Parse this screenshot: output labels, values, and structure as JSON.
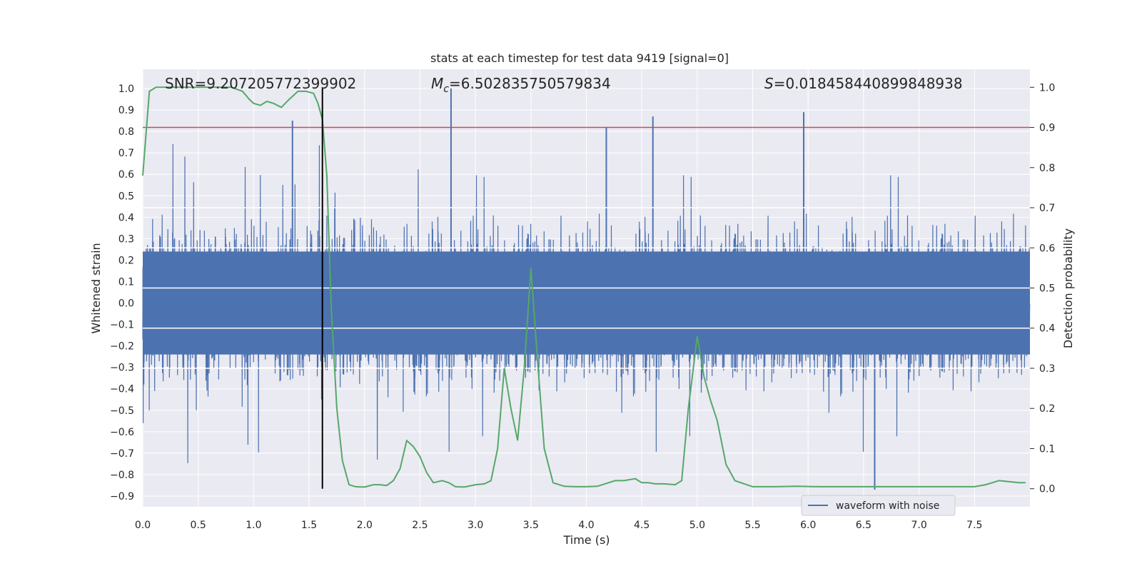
{
  "chart_data": {
    "type": "line",
    "title": "stats at each timestep for test data 9419 [signal=0]",
    "xlabel": "Time (s)",
    "ylabel": "Whitened strain",
    "y2label": "Detection probability",
    "xlim": [
      0,
      8
    ],
    "ylim": [
      -0.95,
      1.09
    ],
    "y2lim": [
      -0.045,
      1.045
    ],
    "xticks": [
      "0.0",
      "0.5",
      "1.0",
      "1.5",
      "2.0",
      "2.5",
      "3.0",
      "3.5",
      "4.0",
      "4.5",
      "5.0",
      "5.5",
      "6.0",
      "6.5",
      "7.0",
      "7.5"
    ],
    "xtick_values": [
      0,
      0.5,
      1,
      1.5,
      2,
      2.5,
      3,
      3.5,
      4,
      4.5,
      5,
      5.5,
      6,
      6.5,
      7,
      7.5
    ],
    "yticks": [
      "1.0",
      "0.9",
      "0.8",
      "0.7",
      "0.6",
      "0.5",
      "0.4",
      "0.3",
      "0.2",
      "0.1",
      "0.0",
      "−0.1",
      "−0.2",
      "−0.3",
      "−0.4",
      "−0.5",
      "−0.6",
      "−0.7",
      "−0.8",
      "−0.9"
    ],
    "ytick_values": [
      1.0,
      0.9,
      0.8,
      0.7,
      0.6,
      0.5,
      0.4,
      0.3,
      0.2,
      0.1,
      0.0,
      -0.1,
      -0.2,
      -0.3,
      -0.4,
      -0.5,
      -0.6,
      -0.7,
      -0.8,
      -0.9
    ],
    "y2ticks": [
      "1.0",
      "0.9",
      "0.8",
      "0.7",
      "0.6",
      "0.5",
      "0.4",
      "0.3",
      "0.2",
      "0.1",
      "0.0"
    ],
    "y2tick_values": [
      1.0,
      0.9,
      0.8,
      0.7,
      0.6,
      0.5,
      0.4,
      0.3,
      0.2,
      0.1,
      0.0
    ],
    "annotations": {
      "snr": "SNR=9.207205772399902",
      "mc_prefix": "M",
      "mc_sub": "c",
      "mc_value": "=6.502835750579834",
      "s_prefix": "S",
      "s_value": "=0.018458440899848938"
    },
    "threshold_y2": 0.9,
    "marker_x": 1.62,
    "legend": {
      "label": "waveform with noise",
      "placement": "lower-right"
    },
    "series": [
      {
        "name": "waveform with noise",
        "color": "#4c72b0",
        "note": "dense noise, about ±0.25 core with spikes to about ±0.6; peaks near 1.0 and -0.87",
        "peaks": [
          [
            2.78,
            1.0
          ],
          [
            6.6,
            -0.87
          ],
          [
            1.35,
            0.85
          ],
          [
            4.6,
            0.87
          ],
          [
            5.96,
            0.89
          ],
          [
            4.18,
            0.82
          ]
        ]
      },
      {
        "name": "",
        "color": "#55a868",
        "axis": "y2",
        "x": [
          0.0,
          0.06,
          0.12,
          0.2,
          0.3,
          0.4,
          0.5,
          0.6,
          0.7,
          0.8,
          0.9,
          0.96,
          1.0,
          1.06,
          1.12,
          1.18,
          1.25,
          1.32,
          1.4,
          1.47,
          1.54,
          1.58,
          1.62,
          1.66,
          1.7,
          1.75,
          1.8,
          1.86,
          1.92,
          2.0,
          2.08,
          2.14,
          2.2,
          2.26,
          2.32,
          2.38,
          2.44,
          2.5,
          2.56,
          2.62,
          2.7,
          2.76,
          2.82,
          2.9,
          3.0,
          3.08,
          3.14,
          3.2,
          3.26,
          3.32,
          3.38,
          3.44,
          3.5,
          3.56,
          3.62,
          3.7,
          3.8,
          3.9,
          4.0,
          4.1,
          4.2,
          4.26,
          4.34,
          4.44,
          4.5,
          4.56,
          4.62,
          4.7,
          4.8,
          4.86,
          4.92,
          5.0,
          5.06,
          5.12,
          5.18,
          5.26,
          5.34,
          5.5,
          5.7,
          5.9,
          6.1,
          6.3,
          6.5,
          6.7,
          6.9,
          7.1,
          7.3,
          7.5,
          7.6,
          7.66,
          7.72,
          7.8,
          7.9,
          7.96
        ],
        "values": [
          0.78,
          0.99,
          1.0,
          1.0,
          1.0,
          1.0,
          1.0,
          1.0,
          1.0,
          1.0,
          0.99,
          0.97,
          0.96,
          0.955,
          0.965,
          0.96,
          0.95,
          0.97,
          0.99,
          0.99,
          0.985,
          0.96,
          0.92,
          0.78,
          0.45,
          0.2,
          0.07,
          0.01,
          0.005,
          0.004,
          0.01,
          0.01,
          0.008,
          0.02,
          0.05,
          0.12,
          0.105,
          0.08,
          0.04,
          0.015,
          0.02,
          0.015,
          0.005,
          0.004,
          0.01,
          0.012,
          0.02,
          0.1,
          0.3,
          0.2,
          0.12,
          0.3,
          0.55,
          0.32,
          0.1,
          0.015,
          0.006,
          0.005,
          0.005,
          0.006,
          0.015,
          0.02,
          0.02,
          0.025,
          0.015,
          0.015,
          0.012,
          0.012,
          0.01,
          0.02,
          0.2,
          0.38,
          0.28,
          0.22,
          0.17,
          0.06,
          0.02,
          0.005,
          0.005,
          0.006,
          0.005,
          0.005,
          0.005,
          0.005,
          0.005,
          0.005,
          0.005,
          0.005,
          0.01,
          0.015,
          0.02,
          0.018,
          0.015,
          0.015
        ]
      }
    ]
  }
}
